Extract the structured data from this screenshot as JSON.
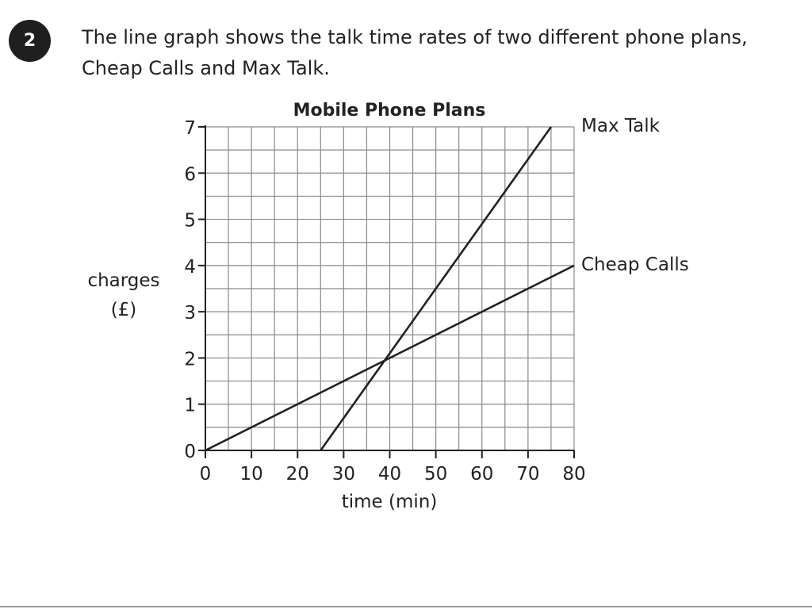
{
  "question": {
    "number": "2",
    "line1": "The line graph shows the talk time rates of two different phone plans,",
    "line2": "Cheap Calls and Max Talk."
  },
  "chart_data": {
    "type": "line",
    "title": "Mobile Phone Plans",
    "xlabel": "time (min)",
    "ylabel_line1": "charges",
    "ylabel_line2": "(£)",
    "xlim": [
      0,
      80
    ],
    "ylim": [
      0,
      7
    ],
    "x_ticks": [
      0,
      10,
      20,
      30,
      40,
      50,
      60,
      70,
      80
    ],
    "y_ticks": [
      0,
      1,
      2,
      3,
      4,
      5,
      6,
      7
    ],
    "x_minor_step": 5,
    "y_minor_step": 0.5,
    "grid": true,
    "line_color": "#222222",
    "grid_color": "#8a8a8a",
    "series": [
      {
        "name": "Max Talk",
        "x": [
          25,
          75
        ],
        "y": [
          0,
          7
        ]
      },
      {
        "name": "Cheap Calls",
        "x": [
          0,
          80
        ],
        "y": [
          0,
          4
        ]
      }
    ]
  }
}
